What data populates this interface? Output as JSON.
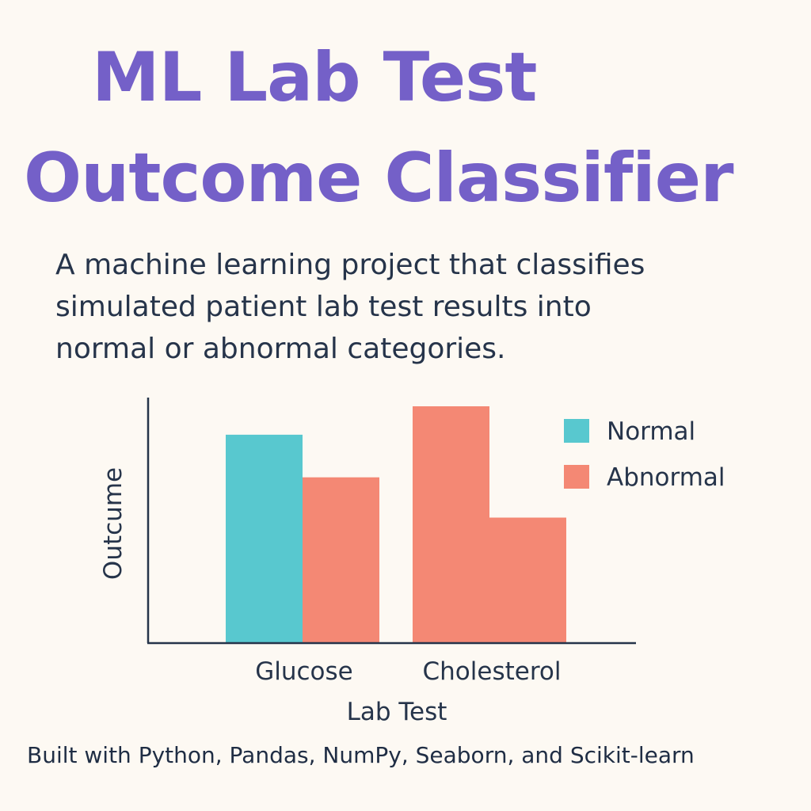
{
  "title": {
    "line1": "ML Lab Test",
    "line2": "Outcome Classifier"
  },
  "description": {
    "line1": "A machine learning project that classifies",
    "line2": "simulated patient lab test results into",
    "line3": "normal or abnormal categories."
  },
  "footer": "Built with Python, Pandas, NumPy, Seaborn, and Scikit-learn",
  "colors": {
    "title": "#7460c8",
    "text": "#26344a",
    "normal": "#58c8cf",
    "abnormal": "#f48874",
    "axis": "#26344a",
    "background": "#fdf9f3"
  },
  "chart_data": {
    "type": "bar",
    "title": "",
    "xlabel": "Lab Test",
    "ylabel": "Outcume",
    "categories": [
      "Glucose",
      "Cholesterol"
    ],
    "series": [
      {
        "name": "Normal",
        "color": "#58c8cf",
        "values": [
          88,
          null
        ]
      },
      {
        "name": "Abnormal",
        "color": "#f48874",
        "values": [
          70,
          100
        ]
      },
      {
        "name": "Abnormal",
        "color": "#f48874",
        "values": [
          null,
          53
        ]
      }
    ],
    "legend": [
      {
        "label": "Normal",
        "color": "#58c8cf"
      },
      {
        "label": "Abnormal",
        "color": "#f48874"
      }
    ],
    "ylim": [
      0,
      100
    ],
    "grid": false,
    "legend_position": "top-right"
  }
}
